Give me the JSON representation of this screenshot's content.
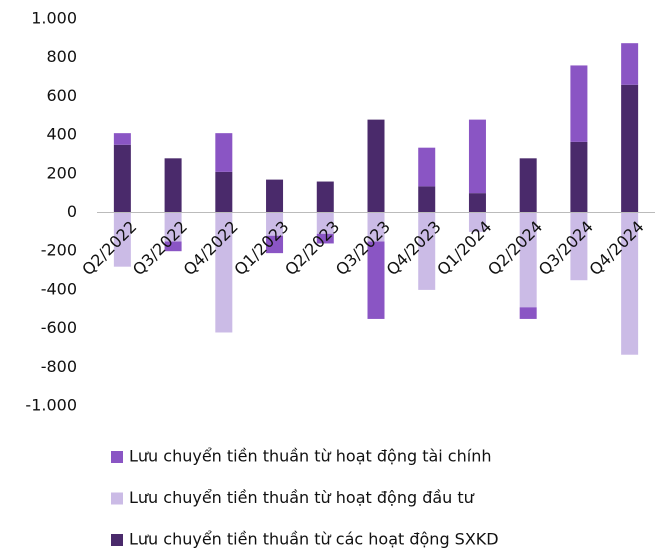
{
  "chart_data": {
    "type": "bar",
    "stacked": true,
    "categories": [
      "Q2/2022",
      "Q3/2022",
      "Q4/2022",
      "Q1/2023",
      "Q2/2023",
      "Q3/2023",
      "Q4/2023",
      "Q1/2024",
      "Q2/2024",
      "Q3/2024",
      "Q4/2024"
    ],
    "series": [
      {
        "name": "Lưu chuyển tiền thuần từ hoạt động tài chính",
        "color": "#8a55c4",
        "values": [
          60,
          -50,
          200,
          -90,
          -50,
          -400,
          200,
          380,
          -60,
          395,
          215
        ]
      },
      {
        "name": "Lưu chuyển tiền thuần từ hoạt động đầu tư",
        "color": "#cbbbe6",
        "values": [
          -280,
          -150,
          -620,
          -120,
          -110,
          -150,
          -400,
          -100,
          -490,
          -350,
          -735
        ]
      },
      {
        "name": "Lưu chuyển tiền thuần từ các hoạt động SXKD",
        "color": "#4a2a6b",
        "values": [
          350,
          280,
          210,
          170,
          160,
          480,
          135,
          100,
          280,
          365,
          660
        ]
      }
    ],
    "ylim": [
      -1000,
      1000
    ],
    "yticks": [
      {
        "value": -1000,
        "label": "-1.000"
      },
      -800,
      -600,
      -400,
      -200,
      0,
      200,
      400,
      600,
      800,
      {
        "value": 1000,
        "label": "1.000"
      }
    ],
    "grid": false
  }
}
